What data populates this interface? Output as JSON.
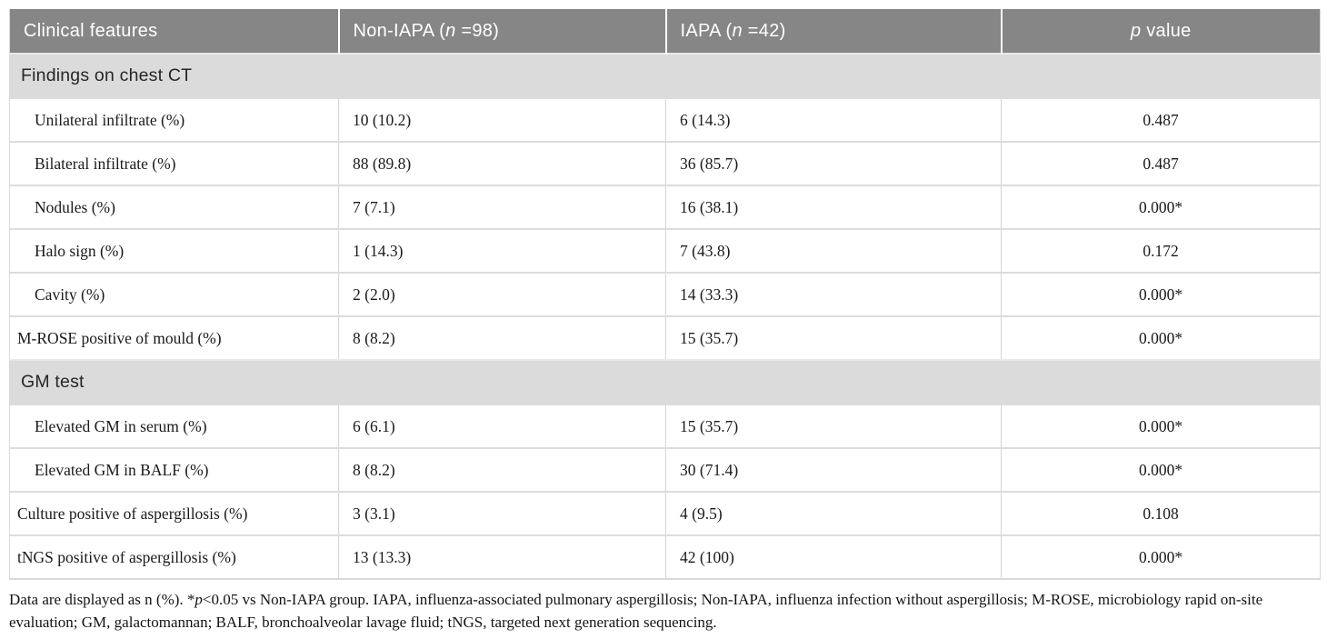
{
  "colors": {
    "header_bg": "#868686",
    "section_bg": "#dbdbdb",
    "row_border": "#dcdcdc",
    "header_text": "#ffffff",
    "body_text": "#1a1a1a"
  },
  "table": {
    "columns": [
      {
        "text": "Clinical features"
      },
      {
        "pre": "Non-IAPA (",
        "italic": "n",
        "post": " =98)"
      },
      {
        "pre": "IAPA (",
        "italic": "n",
        "post": " =42)"
      },
      {
        "italic": "p",
        "post": " value"
      }
    ],
    "sections": [
      {
        "title": "Findings on chest CT",
        "rows": [
          {
            "feature": "Unilateral infiltrate (%)",
            "indent": true,
            "non_iapa": "10 (10.2)",
            "iapa": "6 (14.3)",
            "p": "0.487"
          },
          {
            "feature": "Bilateral infiltrate (%)",
            "indent": true,
            "non_iapa": "88 (89.8)",
            "iapa": "36 (85.7)",
            "p": "0.487"
          },
          {
            "feature": "Nodules (%)",
            "indent": true,
            "non_iapa": "7 (7.1)",
            "iapa": "16 (38.1)",
            "p": "0.000*"
          },
          {
            "feature": "Halo sign (%)",
            "indent": true,
            "non_iapa": "1 (14.3)",
            "iapa": "7 (43.8)",
            "p": "0.172"
          },
          {
            "feature": "Cavity (%)",
            "indent": true,
            "non_iapa": "2 (2.0)",
            "iapa": "14 (33.3)",
            "p": "0.000*"
          },
          {
            "feature": "M-ROSE positive of mould (%)",
            "indent": false,
            "non_iapa": "8 (8.2)",
            "iapa": "15 (35.7)",
            "p": "0.000*"
          }
        ]
      },
      {
        "title": "GM test",
        "rows": [
          {
            "feature": "Elevated GM in serum (%)",
            "indent": true,
            "non_iapa": "6 (6.1)",
            "iapa": "15 (35.7)",
            "p": "0.000*"
          },
          {
            "feature": "Elevated GM in BALF (%)",
            "indent": true,
            "non_iapa": "8 (8.2)",
            "iapa": "30 (71.4)",
            "p": "0.000*"
          },
          {
            "feature": "Culture positive of aspergillosis (%)",
            "indent": false,
            "non_iapa": "3 (3.1)",
            "iapa": "4 (9.5)",
            "p": "0.108"
          },
          {
            "feature": "tNGS positive of aspergillosis (%)",
            "indent": false,
            "non_iapa": "13 (13.3)",
            "iapa": "42 (100)",
            "p": "0.000*"
          }
        ]
      }
    ]
  },
  "footnote": {
    "pre": "Data are displayed as n (%). *",
    "italic": "p",
    "post": "<0.05 vs Non-IAPA group. IAPA, influenza-associated pulmonary aspergillosis; Non-IAPA, influenza infection without aspergillosis; M-ROSE, microbiology rapid on-site evaluation; GM, galactomannan; BALF, bronchoalveolar lavage fluid; tNGS, targeted next generation sequencing."
  }
}
